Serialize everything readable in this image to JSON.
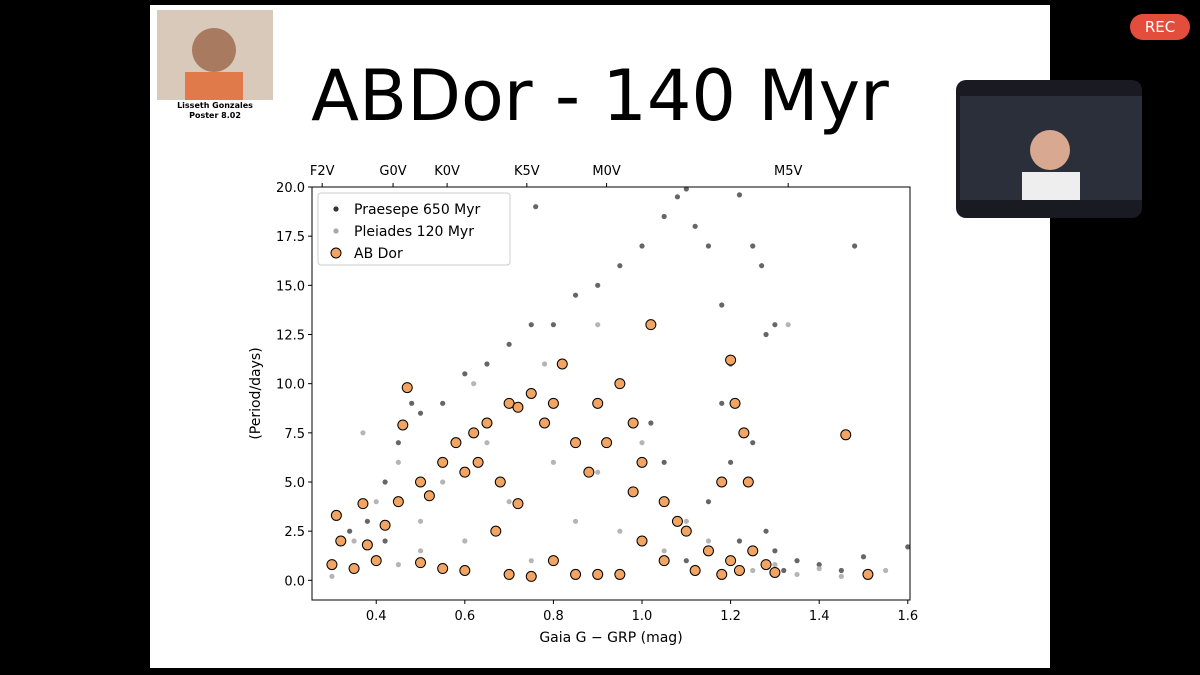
{
  "presenter": {
    "name": "Lisseth Gonzales",
    "poster": "Poster 8.02"
  },
  "recording": "REC",
  "slide_title": "ABDor - 140 Myr",
  "chart_data": {
    "type": "scatter",
    "xlabel": "Gaia G − GRP (mag)",
    "ylabel": "(Period/days)",
    "xlim": [
      0.255,
      1.605
    ],
    "ylim": [
      -1,
      20
    ],
    "xticks": [
      {
        "value": 0.4,
        "label": "0.4"
      },
      {
        "value": 0.6,
        "label": "0.6"
      },
      {
        "value": 0.8,
        "label": "0.8"
      },
      {
        "value": 1.0,
        "label": "1.0"
      },
      {
        "value": 1.2,
        "label": "1.2"
      },
      {
        "value": 1.4,
        "label": "1.4"
      },
      {
        "value": 1.6,
        "label": "1.6"
      }
    ],
    "x2ticks": [
      {
        "value": 0.278,
        "label": "F2V"
      },
      {
        "value": 0.438,
        "label": "G0V"
      },
      {
        "value": 0.56,
        "label": "K0V"
      },
      {
        "value": 0.74,
        "label": "K5V"
      },
      {
        "value": 0.92,
        "label": "M0V"
      },
      {
        "value": 1.33,
        "label": "M5V"
      }
    ],
    "yticks": [
      {
        "value": 0,
        "label": "0.0"
      },
      {
        "value": 2.5,
        "label": "2.5"
      },
      {
        "value": 5,
        "label": "5.0"
      },
      {
        "value": 7.5,
        "label": "7.5"
      },
      {
        "value": 10,
        "label": "10.0"
      },
      {
        "value": 12.5,
        "label": "12.5"
      },
      {
        "value": 15,
        "label": "15.0"
      },
      {
        "value": 17.5,
        "label": "17.5"
      },
      {
        "value": 20,
        "label": "20.0"
      }
    ],
    "legend": "upper left",
    "series": [
      {
        "name": "Praesepe 650 Myr",
        "color": "#333333",
        "x": [
          0.34,
          0.38,
          0.42,
          0.45,
          0.48,
          0.5,
          0.55,
          0.6,
          0.65,
          0.7,
          0.75,
          0.8,
          0.85,
          0.9,
          0.95,
          1.0,
          1.05,
          1.08,
          1.1,
          1.12,
          1.15,
          1.18,
          1.2,
          1.22,
          1.25,
          1.27,
          1.28,
          1.3,
          1.2,
          1.15,
          1.25,
          1.22,
          1.3,
          1.35,
          1.4,
          1.45,
          1.5,
          1.6,
          1.48,
          0.76,
          0.42,
          1.02,
          1.05,
          1.18,
          1.1,
          1.28,
          1.32
        ],
        "values": [
          2.5,
          3,
          5,
          7,
          9,
          8.5,
          9,
          10.5,
          11,
          12,
          13,
          13,
          14.5,
          15,
          16,
          17,
          18.5,
          19.5,
          19.9,
          18,
          17,
          14,
          11,
          19.6,
          17,
          16,
          12.5,
          13,
          6,
          4,
          7,
          2,
          1.5,
          1,
          0.8,
          0.5,
          1.2,
          1.7,
          17,
          19,
          2,
          8,
          6,
          9,
          1,
          2.5,
          0.5
        ]
      },
      {
        "name": "Pleiades 120 Myr",
        "color": "#a8a8a8",
        "x": [
          0.3,
          0.35,
          0.4,
          0.45,
          0.5,
          0.55,
          0.6,
          0.65,
          0.7,
          0.75,
          0.8,
          0.85,
          0.9,
          0.95,
          1.0,
          1.05,
          1.1,
          1.15,
          1.2,
          1.25,
          1.3,
          1.35,
          1.4,
          1.45,
          1.55,
          0.37,
          0.9,
          1.33,
          0.62,
          0.78,
          0.5,
          0.45
        ],
        "values": [
          0.2,
          2,
          4,
          6,
          3,
          5,
          2,
          7,
          4,
          1,
          6,
          3,
          5.5,
          2.5,
          7,
          1.5,
          3,
          2,
          1,
          0.5,
          0.8,
          0.3,
          0.6,
          0.2,
          0.5,
          7.5,
          13,
          13,
          10,
          11,
          1.5,
          0.8
        ]
      },
      {
        "name": "AB Dor",
        "color": "#f2a463",
        "x": [
          0.31,
          0.32,
          0.3,
          0.35,
          0.38,
          0.37,
          0.4,
          0.42,
          0.45,
          0.46,
          0.47,
          0.5,
          0.52,
          0.55,
          0.58,
          0.6,
          0.62,
          0.63,
          0.65,
          0.68,
          0.7,
          0.72,
          0.75,
          0.78,
          0.8,
          0.82,
          0.85,
          0.88,
          0.9,
          0.92,
          0.95,
          0.98,
          1.0,
          1.02,
          1.05,
          0.6,
          0.7,
          0.75,
          0.8,
          0.85,
          0.9,
          0.95,
          1.0,
          1.05,
          1.1,
          1.12,
          1.15,
          1.18,
          1.2,
          1.22,
          1.25,
          1.28,
          1.3,
          1.2,
          1.21,
          1.23,
          1.24,
          1.18,
          1.46,
          1.51,
          0.67,
          0.72,
          0.55,
          0.5,
          0.98,
          1.08
        ],
        "values": [
          3.3,
          2,
          0.8,
          0.6,
          1.8,
          3.9,
          1,
          2.8,
          4,
          7.9,
          9.8,
          5,
          4.3,
          6,
          7,
          5.5,
          7.5,
          6,
          8,
          5,
          9,
          8.8,
          9.5,
          8,
          9,
          11,
          7,
          5.5,
          9,
          7,
          10,
          8,
          6,
          13,
          4,
          0.5,
          0.3,
          0.2,
          1,
          0.3,
          0.3,
          0.3,
          2,
          1,
          2.5,
          0.5,
          1.5,
          0.3,
          1,
          0.5,
          1.5,
          0.8,
          0.4,
          11.2,
          9,
          7.5,
          5,
          5,
          7.4,
          0.3,
          2.5,
          3.9,
          0.6,
          0.9,
          4.5,
          3
        ]
      }
    ]
  }
}
